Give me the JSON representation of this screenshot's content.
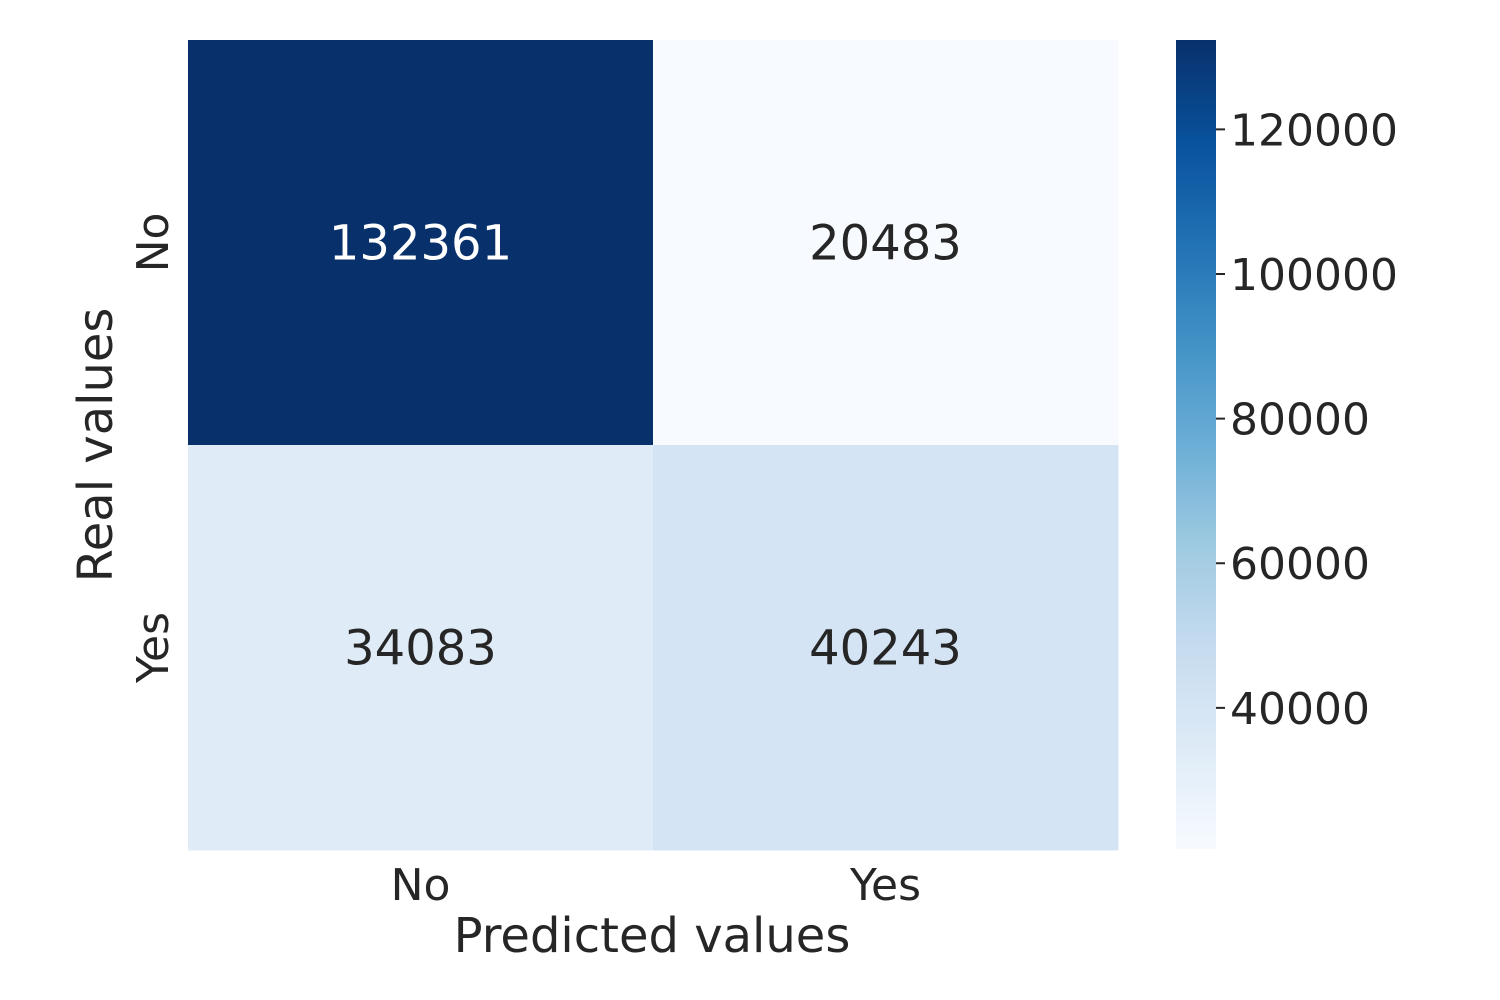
{
  "chart_data": {
    "type": "heatmap",
    "x_categories": [
      "No",
      "Yes"
    ],
    "y_categories": [
      "No",
      "Yes"
    ],
    "values": [
      [
        132361,
        20483
      ],
      [
        34083,
        40243
      ]
    ],
    "xlabel": "Predicted values",
    "ylabel": "Real values",
    "colormap": "Blues",
    "colorbar": {
      "range": [
        20483,
        132361
      ],
      "ticks": [
        40000,
        60000,
        80000,
        100000,
        120000
      ],
      "tick_labels": [
        "40000",
        "60000",
        "80000",
        "100000",
        "120000"
      ]
    },
    "grid": false
  }
}
